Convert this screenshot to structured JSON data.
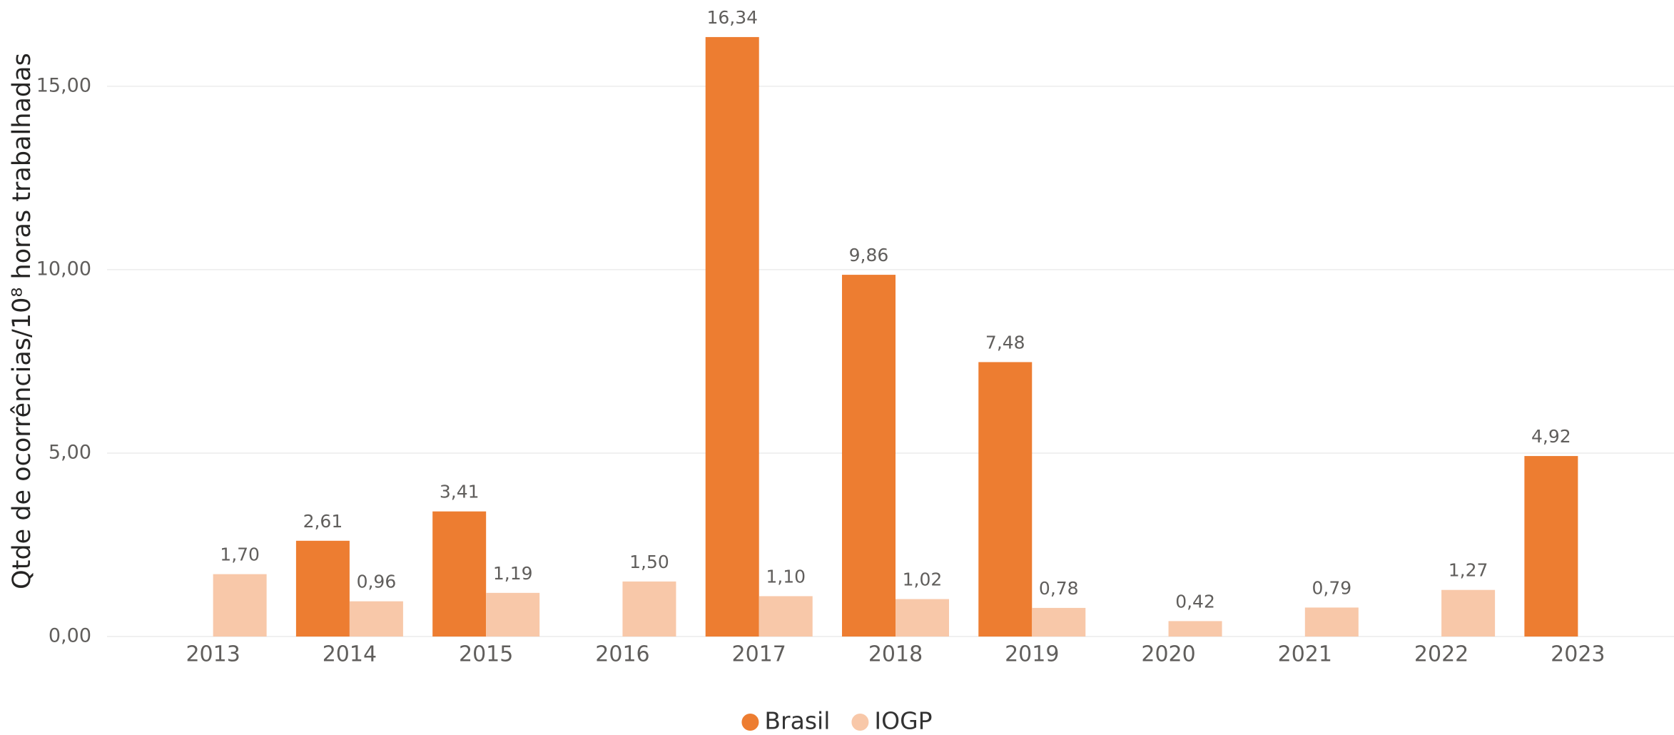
{
  "chart_data": {
    "type": "bar",
    "y_label": "Qtde de ocorrências/10⁸ horas trabalhadas",
    "categories": [
      "2013",
      "2014",
      "2015",
      "2016",
      "2017",
      "2018",
      "2019",
      "2020",
      "2021",
      "2022",
      "2023"
    ],
    "series": [
      {
        "name": "Brasil",
        "color": "#ED7D31",
        "values": [
          null,
          2.61,
          3.41,
          null,
          16.34,
          9.86,
          7.48,
          null,
          null,
          null,
          4.92
        ],
        "value_labels": [
          null,
          "2,61",
          "3,41",
          null,
          "16,34",
          "9,86",
          "7,48",
          null,
          null,
          null,
          "4,92"
        ]
      },
      {
        "name": "IOGP",
        "color": "#F8C8A9",
        "values": [
          1.7,
          0.96,
          1.19,
          1.5,
          1.1,
          1.02,
          0.78,
          0.42,
          0.79,
          1.27,
          null
        ],
        "value_labels": [
          "1,70",
          "0,96",
          "1,19",
          "1,50",
          "1,10",
          "1,02",
          "0,78",
          "0,42",
          "0,79",
          "1,27",
          null
        ]
      }
    ],
    "ylim": [
      0,
      17
    ],
    "yticks": [
      {
        "value": 0,
        "label": "0,00"
      },
      {
        "value": 5,
        "label": "5,00"
      },
      {
        "value": 10,
        "label": "10,00"
      },
      {
        "value": 15,
        "label": "15,00"
      }
    ],
    "grid": true,
    "legend": "bottom"
  }
}
